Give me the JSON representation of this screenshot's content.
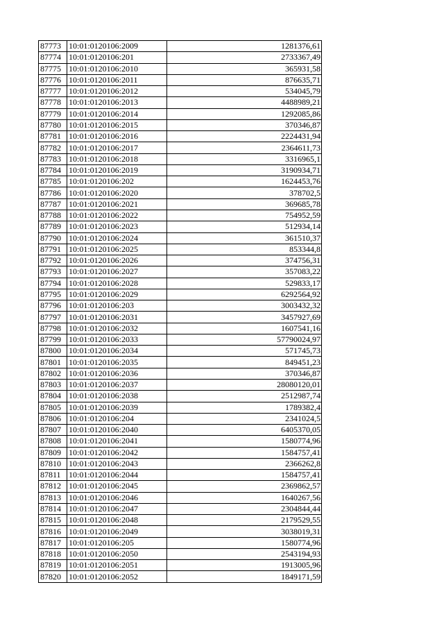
{
  "rows": [
    [
      "87773",
      "10:01:0120106:2009",
      "1281376,61"
    ],
    [
      "87774",
      "10:01:0120106:201",
      "2733367,49"
    ],
    [
      "87775",
      "10:01:0120106:2010",
      "365931,58"
    ],
    [
      "87776",
      "10:01:0120106:2011",
      "876635,71"
    ],
    [
      "87777",
      "10:01:0120106:2012",
      "534045,79"
    ],
    [
      "87778",
      "10:01:0120106:2013",
      "4488989,21"
    ],
    [
      "87779",
      "10:01:0120106:2014",
      "1292085,86"
    ],
    [
      "87780",
      "10:01:0120106:2015",
      "370346,87"
    ],
    [
      "87781",
      "10:01:0120106:2016",
      "2224431,94"
    ],
    [
      "87782",
      "10:01:0120106:2017",
      "2364611,73"
    ],
    [
      "87783",
      "10:01:0120106:2018",
      "3316965,1"
    ],
    [
      "87784",
      "10:01:0120106:2019",
      "3190934,71"
    ],
    [
      "87785",
      "10:01:0120106:202",
      "1624453,76"
    ],
    [
      "87786",
      "10:01:0120106:2020",
      "378702,5"
    ],
    [
      "87787",
      "10:01:0120106:2021",
      "369685,78"
    ],
    [
      "87788",
      "10:01:0120106:2022",
      "754952,59"
    ],
    [
      "87789",
      "10:01:0120106:2023",
      "512934,14"
    ],
    [
      "87790",
      "10:01:0120106:2024",
      "361510,37"
    ],
    [
      "87791",
      "10:01:0120106:2025",
      "853344,8"
    ],
    [
      "87792",
      "10:01:0120106:2026",
      "374756,31"
    ],
    [
      "87793",
      "10:01:0120106:2027",
      "357083,22"
    ],
    [
      "87794",
      "10:01:0120106:2028",
      "529833,17"
    ],
    [
      "87795",
      "10:01:0120106:2029",
      "6292564,92"
    ],
    [
      "87796",
      "10:01:0120106:203",
      "3003432,32"
    ],
    [
      "87797",
      "10:01:0120106:2031",
      "3457927,69"
    ],
    [
      "87798",
      "10:01:0120106:2032",
      "1607541,16"
    ],
    [
      "87799",
      "10:01:0120106:2033",
      "57790024,97"
    ],
    [
      "87800",
      "10:01:0120106:2034",
      "571745,73"
    ],
    [
      "87801",
      "10:01:0120106:2035",
      "849451,23"
    ],
    [
      "87802",
      "10:01:0120106:2036",
      "370346,87"
    ],
    [
      "87803",
      "10:01:0120106:2037",
      "28080120,01"
    ],
    [
      "87804",
      "10:01:0120106:2038",
      "2512987,74"
    ],
    [
      "87805",
      "10:01:0120106:2039",
      "1789382,4"
    ],
    [
      "87806",
      "10:01:0120106:204",
      "2341024,5"
    ],
    [
      "87807",
      "10:01:0120106:2040",
      "6405370,05"
    ],
    [
      "87808",
      "10:01:0120106:2041",
      "1580774,96"
    ],
    [
      "87809",
      "10:01:0120106:2042",
      "1584757,41"
    ],
    [
      "87810",
      "10:01:0120106:2043",
      "2366262,8"
    ],
    [
      "87811",
      "10:01:0120106:2044",
      "1584757,41"
    ],
    [
      "87812",
      "10:01:0120106:2045",
      "2369862,57"
    ],
    [
      "87813",
      "10:01:0120106:2046",
      "1640267,56"
    ],
    [
      "87814",
      "10:01:0120106:2047",
      "2304844,44"
    ],
    [
      "87815",
      "10:01:0120106:2048",
      "2179529,55"
    ],
    [
      "87816",
      "10:01:0120106:2049",
      "3038019,31"
    ],
    [
      "87817",
      "10:01:0120106:205",
      "1580774,96"
    ],
    [
      "87818",
      "10:01:0120106:2050",
      "2543194,93"
    ],
    [
      "87819",
      "10:01:0120106:2051",
      "1913005,96"
    ],
    [
      "87820",
      "10:01:0120106:2052",
      "1849171,59"
    ]
  ]
}
